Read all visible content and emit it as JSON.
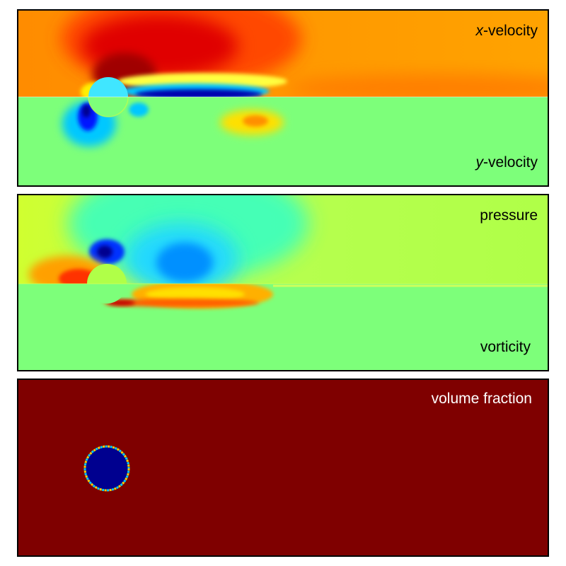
{
  "panels": {
    "velocity": {
      "top_label": {
        "var": "x",
        "suffix": "-velocity"
      },
      "bottom_label": {
        "var": "y",
        "suffix": "-velocity"
      }
    },
    "pressure_vorticity": {
      "top_label": "pressure",
      "bottom_label": "vorticity"
    },
    "volume_fraction": {
      "label": "volume fraction"
    }
  },
  "colormap": "jet",
  "colors": {
    "border": "#000000",
    "label_dark": "#000000",
    "label_light": "#ffffff",
    "background_field_green": "#7dff7a",
    "volume_fraction_fluid": "#7f0000",
    "volume_fraction_solid": "#00008f"
  }
}
